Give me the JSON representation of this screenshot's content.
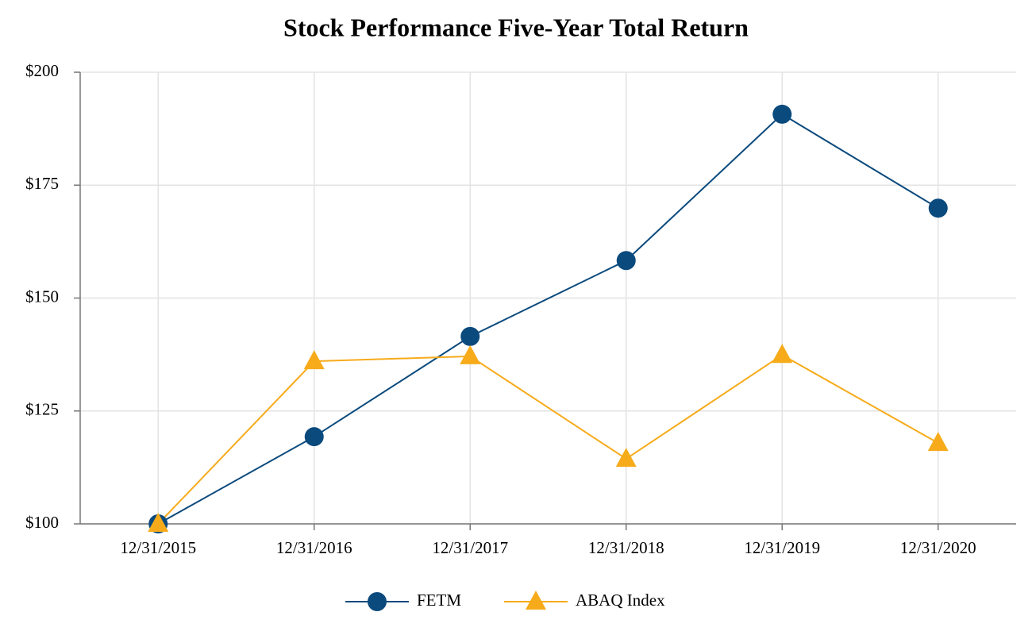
{
  "chart_data": {
    "type": "line",
    "title": "Stock Performance Five-Year Total Return",
    "categories": [
      "12/31/2015",
      "12/31/2016",
      "12/31/2017",
      "12/31/2018",
      "12/31/2019",
      "12/31/2020"
    ],
    "series": [
      {
        "name": "FETM",
        "color": "#0b4a7d",
        "marker": "circle",
        "values": [
          100,
          119.3,
          141.5,
          158.3,
          190.7,
          169.9
        ]
      },
      {
        "name": "ABAQ Index",
        "color": "#f7ab1b",
        "marker": "triangle",
        "values": [
          100,
          136,
          137.1,
          114.4,
          137.4,
          117.9
        ]
      }
    ],
    "ylim": [
      100,
      200
    ],
    "yticks": [
      {
        "value": 100,
        "label": "$100"
      },
      {
        "value": 125,
        "label": "$125"
      },
      {
        "value": 150,
        "label": "$150"
      },
      {
        "value": 175,
        "label": "$175"
      },
      {
        "value": 200,
        "label": "$200"
      }
    ],
    "grid": true,
    "legend": "bottom"
  }
}
